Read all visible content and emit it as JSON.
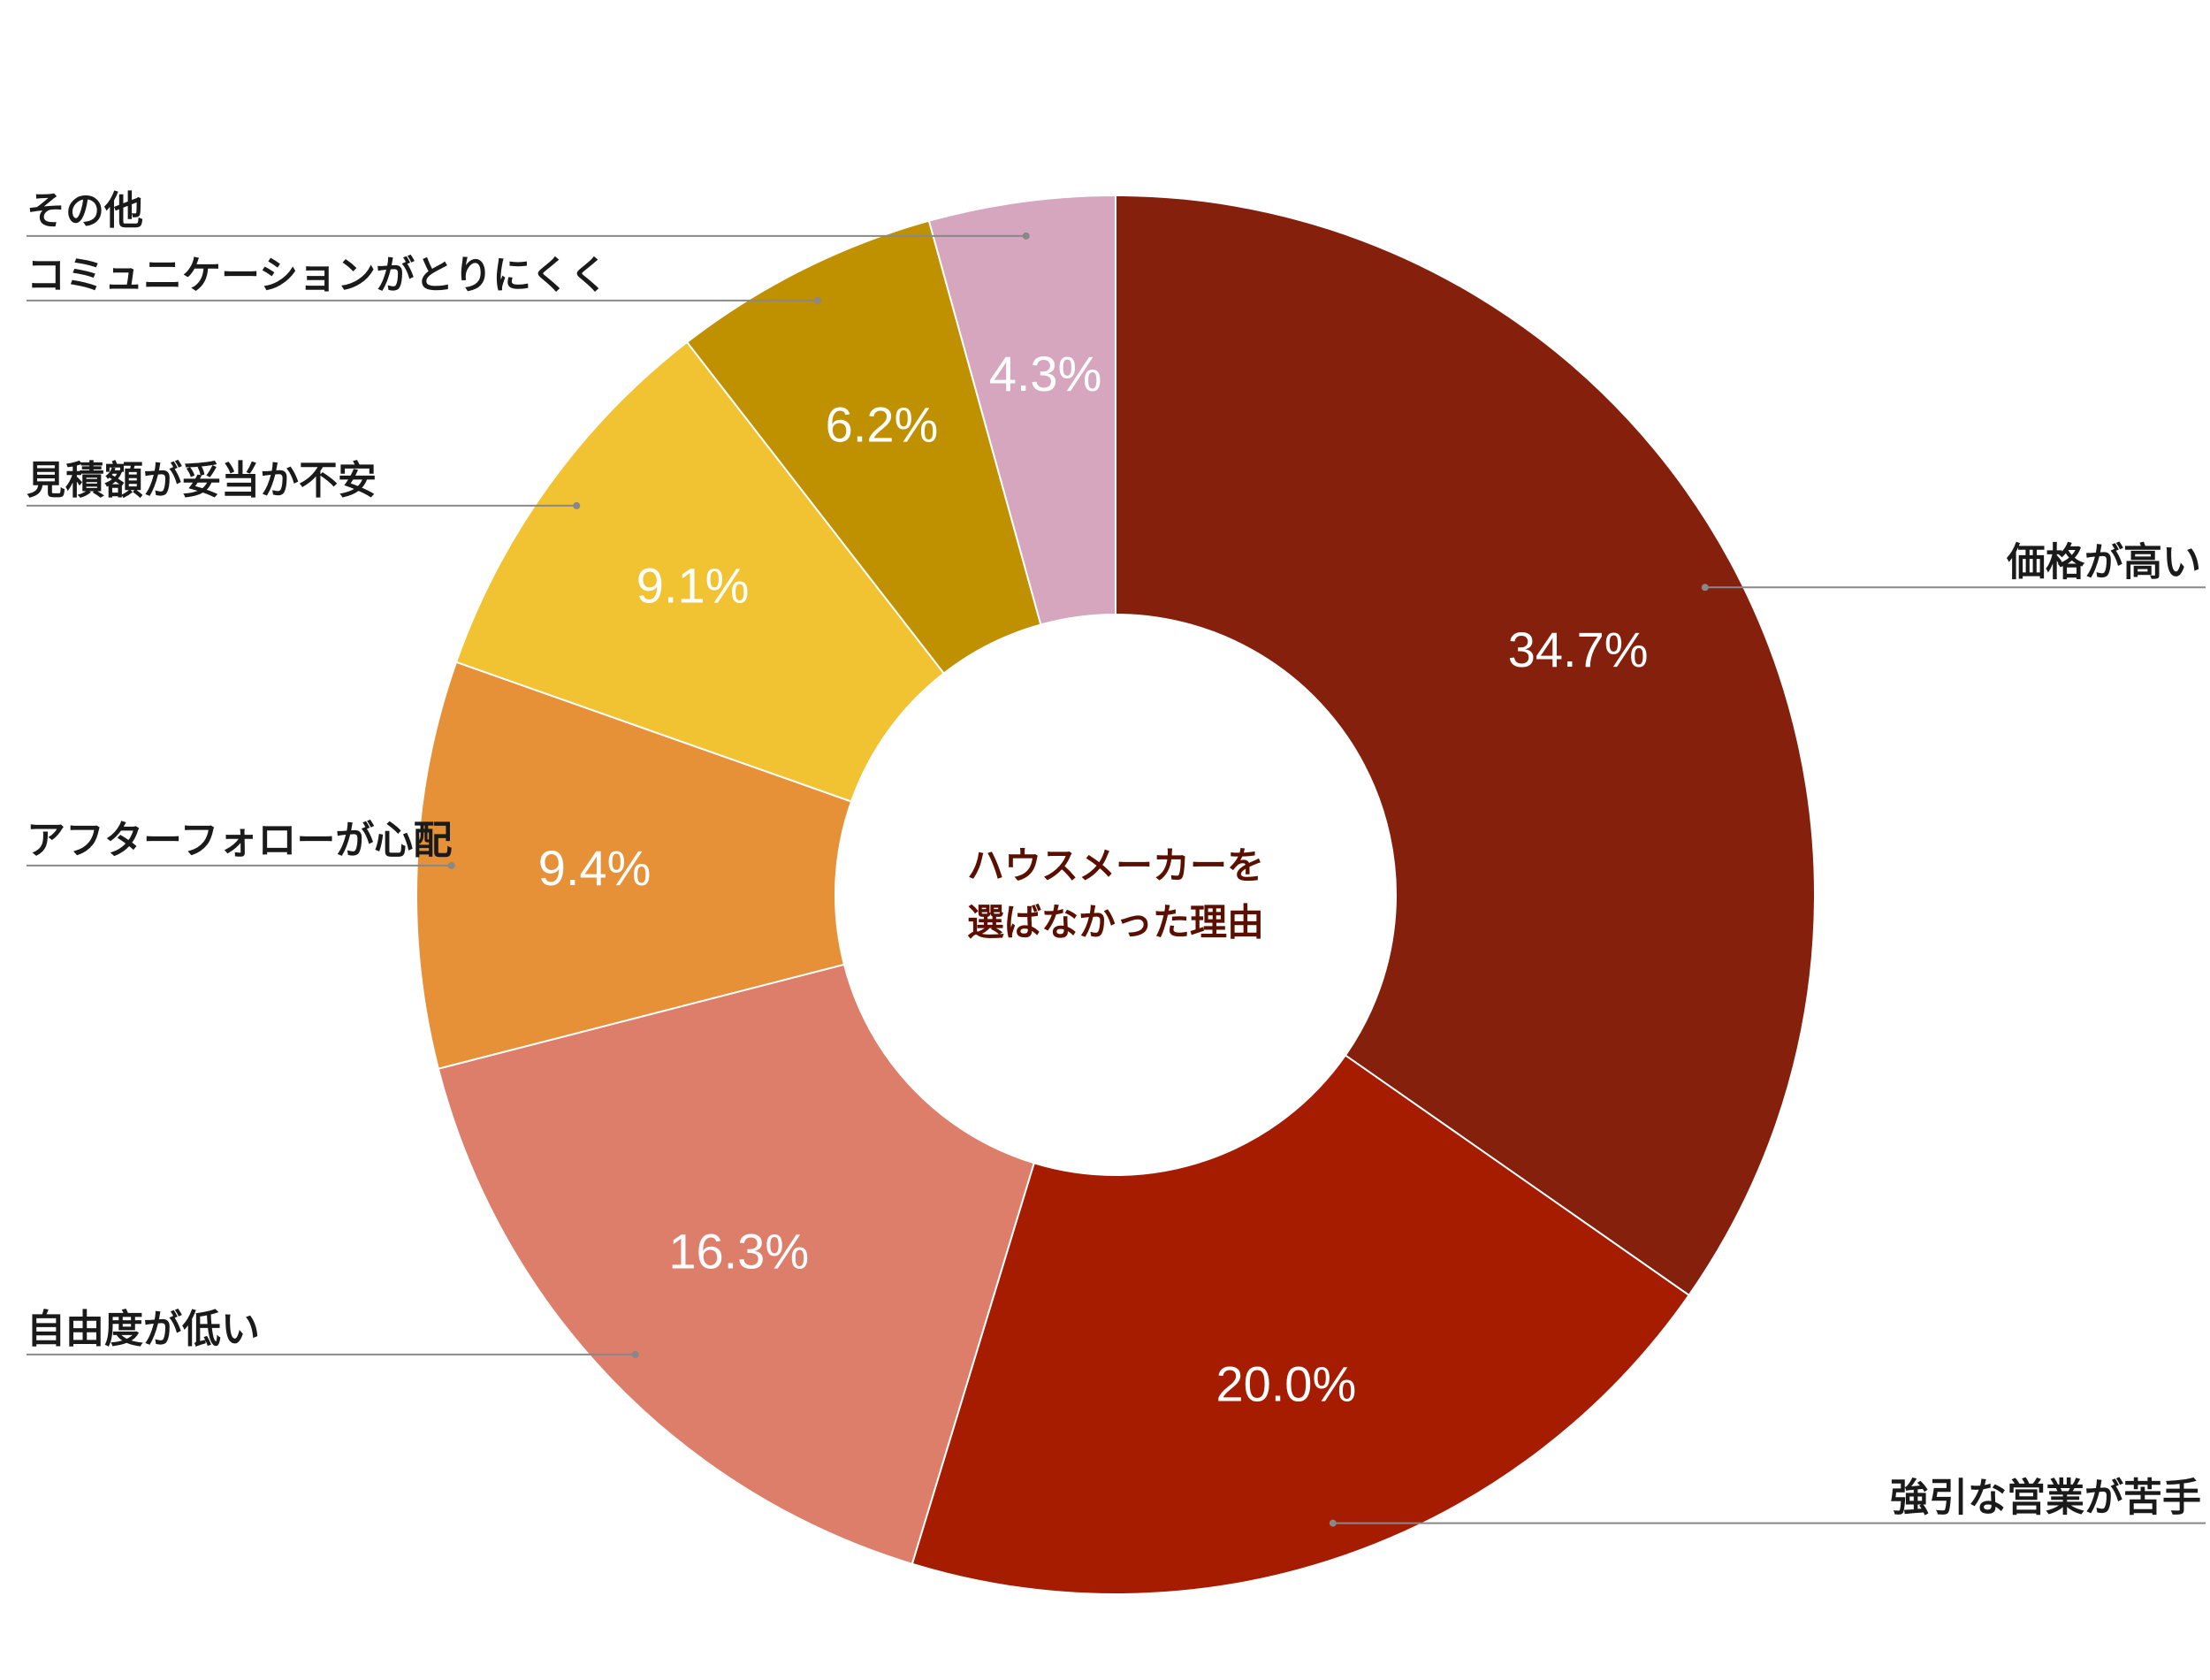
{
  "chart_data": {
    "type": "donut",
    "center_label": [
      "ハウスメーカーを",
      "選ばなかった理由"
    ],
    "categories": [
      "価格が高い",
      "強引な営業が苦手",
      "自由度が低い",
      "アフターフォローが心配",
      "見積額が妥当か不安",
      "コミュニケーションがとりにくく",
      "その他"
    ],
    "values": [
      34.7,
      20.0,
      16.3,
      9.4,
      9.1,
      6.2,
      4.3
    ],
    "value_labels": [
      "34.7%",
      "20.0%",
      "16.3%",
      "9.4%",
      "9.1%",
      "6.2%",
      "4.3%"
    ],
    "colors": [
      "#85200c",
      "#a61c00",
      "#dd7e6b",
      "#e69138",
      "#f1c232",
      "#bf9000",
      "#d5a6bd"
    ]
  }
}
